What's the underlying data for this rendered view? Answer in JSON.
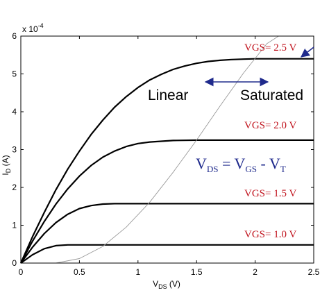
{
  "chart_data": {
    "type": "line",
    "title": "",
    "xlabel": "V_DS (V)",
    "xlabel_main": "V",
    "xlabel_sub": "DS",
    "xlabel_unit": " (V)",
    "ylabel_main": "I",
    "ylabel_sub": "D",
    "ylabel_unit": " (A)",
    "y_multiplier": "x 10",
    "y_multiplier_exp": "-4",
    "xlim": [
      0,
      2.5
    ],
    "ylim": [
      0,
      6
    ],
    "x_ticks": [
      "0",
      "0.5",
      "1",
      "1.5",
      "2",
      "2.5"
    ],
    "y_ticks": [
      "0",
      "1",
      "2",
      "3",
      "4",
      "5",
      "6"
    ],
    "grid": false,
    "series": [
      {
        "name": "VGS= 2.5 V",
        "x": [
          0,
          0.1,
          0.2,
          0.3,
          0.4,
          0.5,
          0.6,
          0.7,
          0.8,
          0.9,
          1.0,
          1.1,
          1.2,
          1.3,
          1.4,
          1.5,
          1.6,
          1.7,
          1.8,
          1.9,
          2.0,
          2.1,
          2.2,
          2.3,
          2.4,
          2.5
        ],
        "y": [
          0,
          0.7,
          1.34,
          1.94,
          2.48,
          2.96,
          3.4,
          3.78,
          4.12,
          4.4,
          4.64,
          4.84,
          4.99,
          5.12,
          5.21,
          5.28,
          5.33,
          5.36,
          5.38,
          5.39,
          5.4,
          5.4,
          5.4,
          5.4,
          5.4,
          5.4
        ]
      },
      {
        "name": "VGS= 2.0 V",
        "x": [
          0,
          0.1,
          0.2,
          0.3,
          0.4,
          0.5,
          0.6,
          0.7,
          0.8,
          0.9,
          1.0,
          1.1,
          1.2,
          1.3,
          1.5,
          1.8,
          2.1,
          2.5
        ],
        "y": [
          0,
          0.58,
          1.1,
          1.56,
          1.96,
          2.3,
          2.58,
          2.8,
          2.96,
          3.08,
          3.16,
          3.2,
          3.22,
          3.24,
          3.25,
          3.25,
          3.25,
          3.25
        ]
      },
      {
        "name": "VGS= 1.5 V",
        "x": [
          0,
          0.1,
          0.2,
          0.3,
          0.4,
          0.5,
          0.6,
          0.7,
          0.8,
          0.9,
          1.0,
          1.2,
          1.6,
          2.0,
          2.5
        ],
        "y": [
          0,
          0.42,
          0.78,
          1.07,
          1.29,
          1.44,
          1.52,
          1.56,
          1.57,
          1.57,
          1.57,
          1.57,
          1.57,
          1.57,
          1.57
        ]
      },
      {
        "name": "VGS= 1.0 V",
        "x": [
          0,
          0.1,
          0.2,
          0.3,
          0.4,
          0.5,
          0.6,
          1.0,
          1.5,
          2.0,
          2.5
        ],
        "y": [
          0,
          0.22,
          0.38,
          0.46,
          0.48,
          0.48,
          0.48,
          0.48,
          0.48,
          0.48,
          0.48
        ]
      },
      {
        "name": "boundary",
        "x": [
          0.3,
          0.5,
          0.7,
          0.9,
          1.1,
          1.3,
          1.5,
          1.7,
          1.9,
          2.1,
          2.2
        ],
        "y": [
          0,
          0.12,
          0.44,
          0.95,
          1.61,
          2.4,
          3.25,
          4.15,
          5.02,
          5.8,
          6.0
        ]
      }
    ],
    "annotations": {
      "linear": "Linear",
      "saturated": "Saturated",
      "equation": {
        "v1": "V",
        "s1": "DS",
        "eq": " = ",
        "v2": "V",
        "s2": "GS",
        "minus": " - ",
        "v3": "V",
        "s3": "T"
      },
      "vgs_labels": [
        "VGS= 2.5 V",
        "VGS= 2.0 V",
        "VGS= 1.5 V",
        "VGS= 1.0 V"
      ]
    },
    "colors": {
      "curve": "#000000",
      "boundary": "#9a9a9a",
      "vgs_label": "#c0121c",
      "arrow": "#1f2a8c",
      "equation": "#1f2a8c"
    }
  }
}
